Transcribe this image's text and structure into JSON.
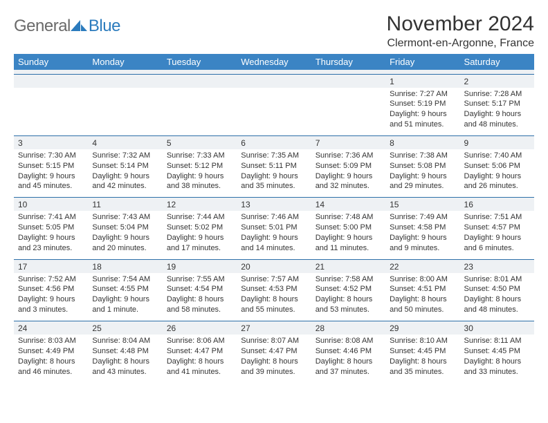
{
  "logo": {
    "text_general": "General",
    "text_blue": "Blue"
  },
  "header": {
    "month_title": "November 2024",
    "location": "Clermont-en-Argonne, France"
  },
  "colors": {
    "header_bg": "#3b84c4",
    "daynum_bg": "#eef1f4",
    "border": "#2b6ea8",
    "text": "#333333",
    "logo_gray": "#6a6a6a",
    "logo_blue": "#2b7bbd"
  },
  "day_names": [
    "Sunday",
    "Monday",
    "Tuesday",
    "Wednesday",
    "Thursday",
    "Friday",
    "Saturday"
  ],
  "weeks": [
    [
      null,
      null,
      null,
      null,
      null,
      {
        "n": "1",
        "sr": "Sunrise: 7:27 AM",
        "ss": "Sunset: 5:19 PM",
        "dl": "Daylight: 9 hours and 51 minutes."
      },
      {
        "n": "2",
        "sr": "Sunrise: 7:28 AM",
        "ss": "Sunset: 5:17 PM",
        "dl": "Daylight: 9 hours and 48 minutes."
      }
    ],
    [
      {
        "n": "3",
        "sr": "Sunrise: 7:30 AM",
        "ss": "Sunset: 5:15 PM",
        "dl": "Daylight: 9 hours and 45 minutes."
      },
      {
        "n": "4",
        "sr": "Sunrise: 7:32 AM",
        "ss": "Sunset: 5:14 PM",
        "dl": "Daylight: 9 hours and 42 minutes."
      },
      {
        "n": "5",
        "sr": "Sunrise: 7:33 AM",
        "ss": "Sunset: 5:12 PM",
        "dl": "Daylight: 9 hours and 38 minutes."
      },
      {
        "n": "6",
        "sr": "Sunrise: 7:35 AM",
        "ss": "Sunset: 5:11 PM",
        "dl": "Daylight: 9 hours and 35 minutes."
      },
      {
        "n": "7",
        "sr": "Sunrise: 7:36 AM",
        "ss": "Sunset: 5:09 PM",
        "dl": "Daylight: 9 hours and 32 minutes."
      },
      {
        "n": "8",
        "sr": "Sunrise: 7:38 AM",
        "ss": "Sunset: 5:08 PM",
        "dl": "Daylight: 9 hours and 29 minutes."
      },
      {
        "n": "9",
        "sr": "Sunrise: 7:40 AM",
        "ss": "Sunset: 5:06 PM",
        "dl": "Daylight: 9 hours and 26 minutes."
      }
    ],
    [
      {
        "n": "10",
        "sr": "Sunrise: 7:41 AM",
        "ss": "Sunset: 5:05 PM",
        "dl": "Daylight: 9 hours and 23 minutes."
      },
      {
        "n": "11",
        "sr": "Sunrise: 7:43 AM",
        "ss": "Sunset: 5:04 PM",
        "dl": "Daylight: 9 hours and 20 minutes."
      },
      {
        "n": "12",
        "sr": "Sunrise: 7:44 AM",
        "ss": "Sunset: 5:02 PM",
        "dl": "Daylight: 9 hours and 17 minutes."
      },
      {
        "n": "13",
        "sr": "Sunrise: 7:46 AM",
        "ss": "Sunset: 5:01 PM",
        "dl": "Daylight: 9 hours and 14 minutes."
      },
      {
        "n": "14",
        "sr": "Sunrise: 7:48 AM",
        "ss": "Sunset: 5:00 PM",
        "dl": "Daylight: 9 hours and 11 minutes."
      },
      {
        "n": "15",
        "sr": "Sunrise: 7:49 AM",
        "ss": "Sunset: 4:58 PM",
        "dl": "Daylight: 9 hours and 9 minutes."
      },
      {
        "n": "16",
        "sr": "Sunrise: 7:51 AM",
        "ss": "Sunset: 4:57 PM",
        "dl": "Daylight: 9 hours and 6 minutes."
      }
    ],
    [
      {
        "n": "17",
        "sr": "Sunrise: 7:52 AM",
        "ss": "Sunset: 4:56 PM",
        "dl": "Daylight: 9 hours and 3 minutes."
      },
      {
        "n": "18",
        "sr": "Sunrise: 7:54 AM",
        "ss": "Sunset: 4:55 PM",
        "dl": "Daylight: 9 hours and 1 minute."
      },
      {
        "n": "19",
        "sr": "Sunrise: 7:55 AM",
        "ss": "Sunset: 4:54 PM",
        "dl": "Daylight: 8 hours and 58 minutes."
      },
      {
        "n": "20",
        "sr": "Sunrise: 7:57 AM",
        "ss": "Sunset: 4:53 PM",
        "dl": "Daylight: 8 hours and 55 minutes."
      },
      {
        "n": "21",
        "sr": "Sunrise: 7:58 AM",
        "ss": "Sunset: 4:52 PM",
        "dl": "Daylight: 8 hours and 53 minutes."
      },
      {
        "n": "22",
        "sr": "Sunrise: 8:00 AM",
        "ss": "Sunset: 4:51 PM",
        "dl": "Daylight: 8 hours and 50 minutes."
      },
      {
        "n": "23",
        "sr": "Sunrise: 8:01 AM",
        "ss": "Sunset: 4:50 PM",
        "dl": "Daylight: 8 hours and 48 minutes."
      }
    ],
    [
      {
        "n": "24",
        "sr": "Sunrise: 8:03 AM",
        "ss": "Sunset: 4:49 PM",
        "dl": "Daylight: 8 hours and 46 minutes."
      },
      {
        "n": "25",
        "sr": "Sunrise: 8:04 AM",
        "ss": "Sunset: 4:48 PM",
        "dl": "Daylight: 8 hours and 43 minutes."
      },
      {
        "n": "26",
        "sr": "Sunrise: 8:06 AM",
        "ss": "Sunset: 4:47 PM",
        "dl": "Daylight: 8 hours and 41 minutes."
      },
      {
        "n": "27",
        "sr": "Sunrise: 8:07 AM",
        "ss": "Sunset: 4:47 PM",
        "dl": "Daylight: 8 hours and 39 minutes."
      },
      {
        "n": "28",
        "sr": "Sunrise: 8:08 AM",
        "ss": "Sunset: 4:46 PM",
        "dl": "Daylight: 8 hours and 37 minutes."
      },
      {
        "n": "29",
        "sr": "Sunrise: 8:10 AM",
        "ss": "Sunset: 4:45 PM",
        "dl": "Daylight: 8 hours and 35 minutes."
      },
      {
        "n": "30",
        "sr": "Sunrise: 8:11 AM",
        "ss": "Sunset: 4:45 PM",
        "dl": "Daylight: 8 hours and 33 minutes."
      }
    ]
  ]
}
